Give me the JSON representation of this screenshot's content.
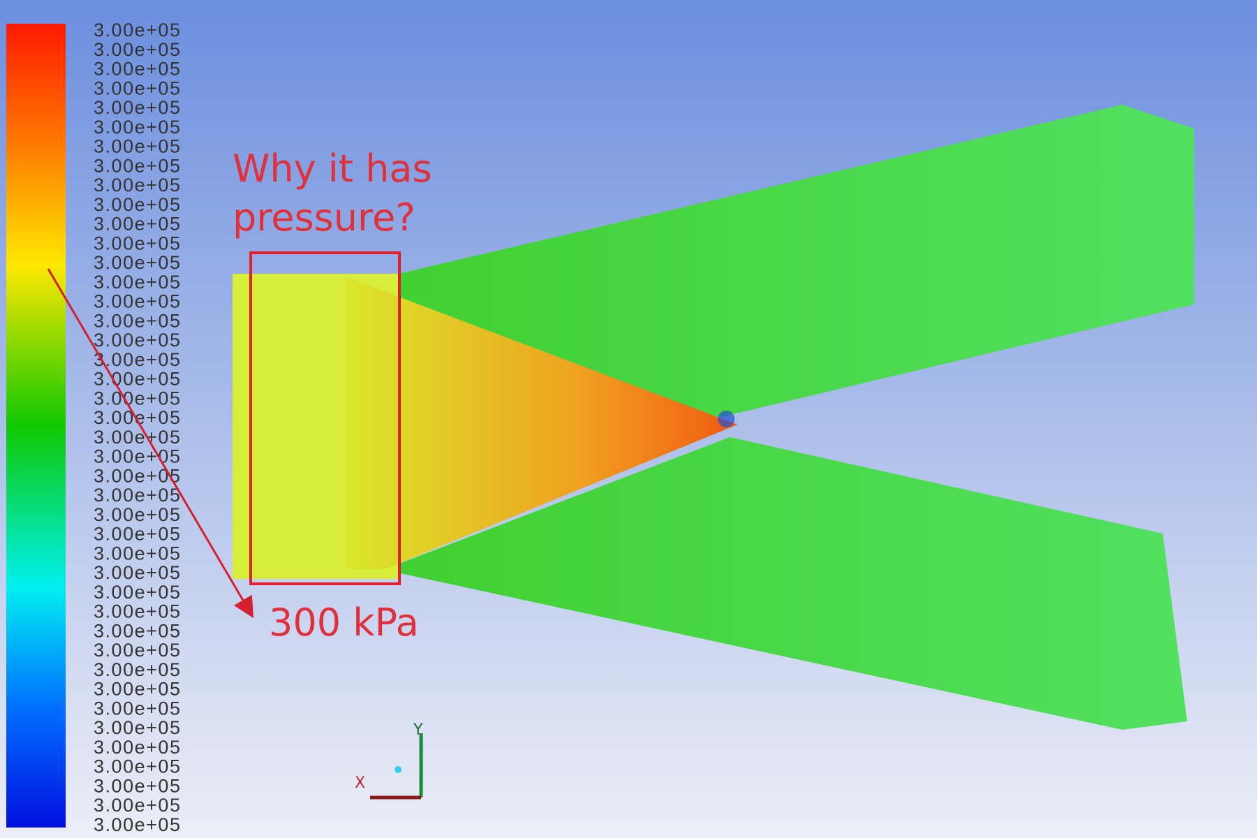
{
  "colorbar": {
    "labels": [
      "3.00e+05",
      "3.00e+05",
      "3.00e+05",
      "3.00e+05",
      "3.00e+05",
      "3.00e+05",
      "3.00e+05",
      "3.00e+05",
      "3.00e+05",
      "3.00e+05",
      "3.00e+05",
      "3.00e+05",
      "3.00e+05",
      "3.00e+05",
      "3.00e+05",
      "3.00e+05",
      "3.00e+05",
      "3.00e+05",
      "3.00e+05",
      "3.00e+05",
      "3.00e+05",
      "3.00e+05",
      "3.00e+05",
      "3.00e+05",
      "3.00e+05",
      "3.00e+05",
      "3.00e+05",
      "3.00e+05",
      "3.00e+05",
      "3.00e+05",
      "3.00e+05",
      "3.00e+05",
      "3.00e+05",
      "3.00e+05",
      "3.00e+05",
      "3.00e+05",
      "3.00e+05",
      "3.00e+05",
      "3.00e+05",
      "3.00e+05",
      "3.00e+05",
      "3.00e+05"
    ]
  },
  "annotations": {
    "question": [
      "Why it has",
      "pressure?"
    ],
    "value": "300 kPa"
  },
  "axes": {
    "x": "X",
    "y": "Y"
  }
}
